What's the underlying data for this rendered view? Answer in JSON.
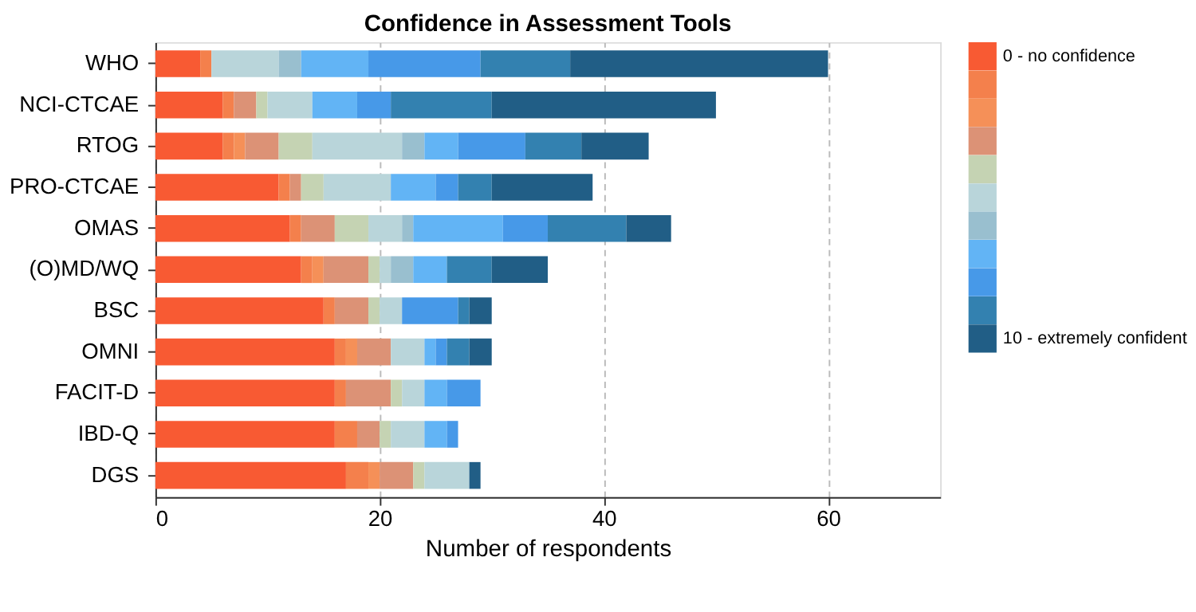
{
  "chart_data": {
    "type": "bar",
    "orientation": "horizontal",
    "stacked": true,
    "title": "Confidence in Assessment Tools",
    "xlabel": "Number of respondents",
    "categories": [
      "WHO",
      "NCI-CTCAE",
      "RTOG",
      "PRO-CTCAE",
      "OMAS",
      "(O)MD/WQ",
      "BSC",
      "OMNI",
      "FACIT-D",
      "IBD-Q",
      "DGS"
    ],
    "series": [
      {
        "name": "0 - no confidence",
        "color": "#f85a33",
        "values": [
          4,
          6,
          6,
          11,
          12,
          13,
          15,
          16,
          16,
          16,
          17
        ]
      },
      {
        "color": "#f4804c",
        "values": [
          1,
          1,
          1,
          1,
          1,
          1,
          1,
          1,
          1,
          2,
          2
        ]
      },
      {
        "color": "#f59058",
        "values": [
          0,
          0,
          1,
          0,
          0,
          1,
          0,
          1,
          0,
          0,
          1
        ]
      },
      {
        "color": "#dc9276",
        "values": [
          0,
          2,
          3,
          1,
          3,
          4,
          3,
          3,
          4,
          2,
          3
        ]
      },
      {
        "color": "#c5d3b3",
        "values": [
          0,
          1,
          3,
          2,
          3,
          1,
          1,
          0,
          1,
          1,
          1
        ]
      },
      {
        "color": "#b9d5da",
        "values": [
          6,
          4,
          8,
          6,
          3,
          1,
          2,
          3,
          2,
          3,
          4
        ]
      },
      {
        "color": "#99bfcf",
        "values": [
          2,
          0,
          2,
          0,
          1,
          2,
          0,
          0,
          0,
          0,
          0
        ]
      },
      {
        "color": "#62b4f5",
        "values": [
          6,
          4,
          3,
          4,
          8,
          3,
          0,
          1,
          2,
          2,
          0
        ]
      },
      {
        "color": "#4799e8",
        "values": [
          10,
          3,
          6,
          2,
          4,
          0,
          5,
          1,
          3,
          1,
          0
        ]
      },
      {
        "color": "#3381b0",
        "values": [
          8,
          9,
          5,
          3,
          7,
          4,
          1,
          2,
          0,
          0,
          0
        ]
      },
      {
        "name": "10 - extremely confident",
        "color": "#215e86",
        "values": [
          23,
          20,
          6,
          9,
          4,
          5,
          2,
          2,
          0,
          0,
          1
        ]
      }
    ],
    "xlim": [
      0,
      70
    ],
    "xticks": [
      0,
      20,
      40,
      60
    ],
    "grid": "x",
    "legend": "top right"
  }
}
